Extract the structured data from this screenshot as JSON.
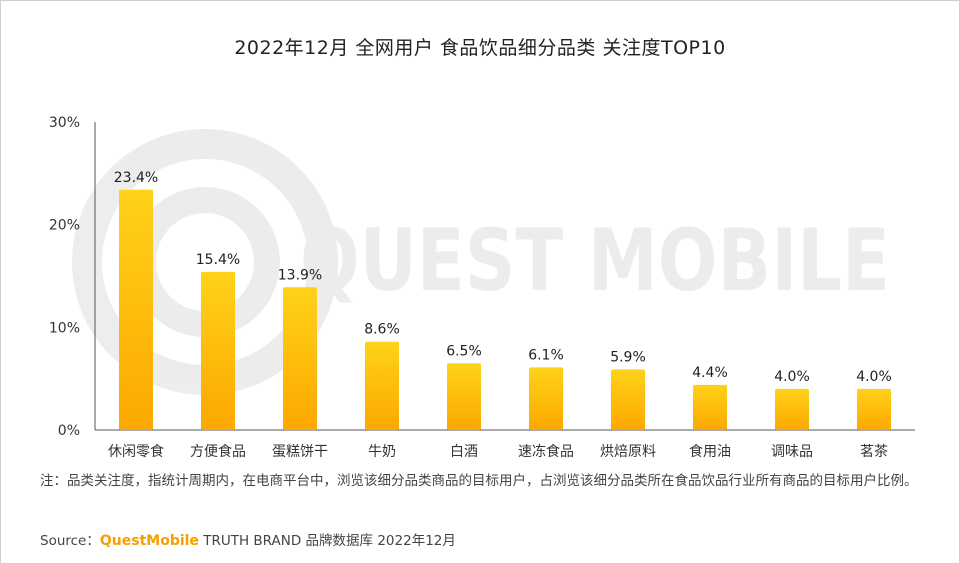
{
  "chart_data": {
    "type": "bar",
    "title": "2022年12月 全网用户 食品饮品细分品类 关注度TOP10",
    "categories": [
      "休闲零食",
      "方便食品",
      "蛋糕饼干",
      "牛奶",
      "白酒",
      "速冻食品",
      "烘焙原料",
      "食用油",
      "调味品",
      "茗茶"
    ],
    "values": [
      23.4,
      15.4,
      13.9,
      8.6,
      6.5,
      6.1,
      5.9,
      4.4,
      4.0,
      4.0
    ],
    "data_labels": [
      "23.4%",
      "15.4%",
      "13.9%",
      "8.6%",
      "6.5%",
      "6.1%",
      "5.9%",
      "4.4%",
      "4.0%",
      "4.0%"
    ],
    "y_ticks": [
      "0%",
      "10%",
      "20%",
      "30%"
    ],
    "y_tick_values": [
      0,
      10,
      20,
      30
    ],
    "ylim": [
      0,
      30
    ],
    "xlabel": "",
    "ylabel": "",
    "grid": false,
    "legend": "none",
    "colors": {
      "bar_top": "#ffd21a",
      "bar_bottom": "#fca800",
      "axis": "#555555"
    }
  },
  "watermark": "QUEST MOBILE",
  "note": "注：品类关注度，指统计周期内，在电商平台中，浏览该细分品类商品的目标用户，占浏览该细分品类所在食品饮品行业所有商品的目标用户比例。",
  "source": {
    "prefix": "Source：",
    "brand": "QuestMobile",
    "rest": " TRUTH BRAND 品牌数据库 2022年12月"
  }
}
